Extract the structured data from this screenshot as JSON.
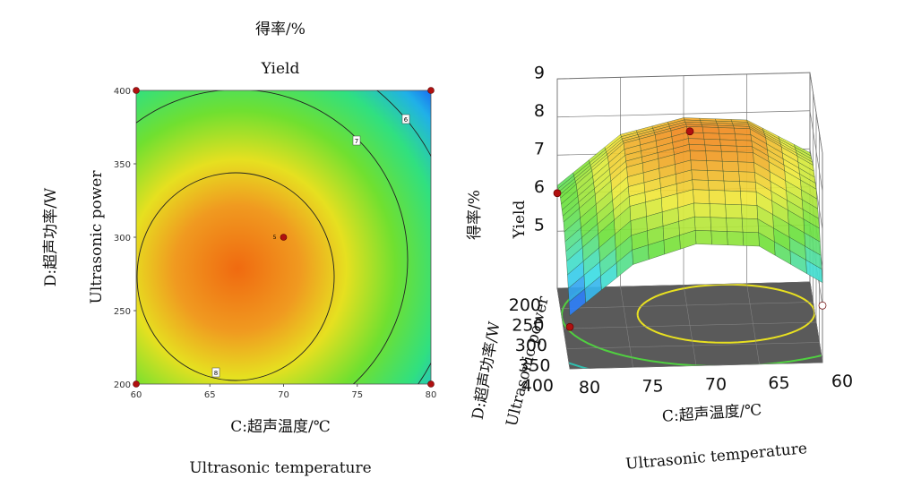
{
  "chart_data": [
    {
      "type": "contour",
      "title": "得率/%",
      "subtitle": "Yield",
      "x_label": "C:超声温度/℃",
      "x_label_en": "Ultrasonic temperature",
      "y_label": "D:超声功率/W",
      "y_label_en": "Ultrasonic power",
      "xlim": [
        60,
        80
      ],
      "xticks": [
        60,
        65,
        70,
        75,
        80
      ],
      "ylim": [
        200,
        400
      ],
      "yticks": [
        200,
        250,
        300,
        350,
        400
      ],
      "contours": [
        6,
        7,
        8
      ],
      "points": {
        "x": [
          60,
          60,
          80,
          80,
          70
        ],
        "y": [
          200,
          400,
          200,
          400,
          300
        ],
        "labels": [
          null,
          null,
          null,
          null,
          "5"
        ]
      },
      "point_color": "#b01010"
    },
    {
      "type": "surface3d",
      "z_label": "得率/%",
      "z_label_en": "Yield",
      "x_label": "C:超声温度/℃",
      "x_label_en": "Ultrasonic temperature",
      "y_label": "D:超声功率/W",
      "y_label_en": "Ultrasonic power",
      "xlim": [
        80,
        60
      ],
      "xticks": [
        80,
        75,
        70,
        65,
        60
      ],
      "ylim": [
        400,
        200
      ],
      "yticks": [
        200,
        250,
        300,
        350,
        400
      ],
      "zlim": [
        3.5,
        9
      ],
      "zticks": [
        5,
        6,
        7,
        8,
        9
      ],
      "surface": {
        "x": [
          60,
          65,
          70,
          75,
          80
        ],
        "y": [
          200,
          250,
          300,
          350,
          400
        ],
        "z": [
          [
            6.9,
            7.8,
            7.9,
            7.5,
            6.2
          ],
          [
            7.1,
            8.1,
            8.2,
            7.8,
            6.4
          ],
          [
            7.0,
            8.0,
            8.1,
            7.7,
            6.3
          ],
          [
            6.5,
            7.5,
            7.6,
            7.2,
            5.8
          ],
          [
            5.6,
            6.6,
            6.7,
            6.2,
            4.9
          ]
        ]
      },
      "points": {
        "x": [
          70,
          80,
          80,
          60
        ],
        "y": [
          300,
          200,
          400,
          400
        ],
        "z": [
          8.6,
          6.0,
          4.6,
          5.0
        ],
        "colors": [
          "#b01010",
          "#b01010",
          "#b01010",
          "#ffffff"
        ]
      }
    }
  ]
}
